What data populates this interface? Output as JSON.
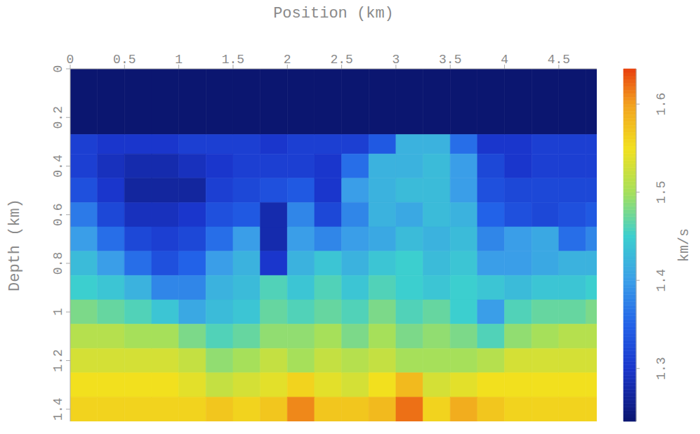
{
  "chart_data": {
    "type": "heatmap",
    "x_label": "Position (km)",
    "y_label": "Depth (km)",
    "xlim": [
      0,
      4.85
    ],
    "xticks": [
      0,
      0.5,
      1,
      1.5,
      2,
      2.5,
      3,
      3.5,
      4,
      4.5
    ],
    "ylim": [
      0,
      1.45
    ],
    "yticks": [
      0,
      0.2,
      0.4,
      0.6,
      0.8,
      1,
      1.2,
      1.4
    ],
    "x_bins": [
      0,
      0.25,
      0.5,
      0.75,
      1,
      1.25,
      1.5,
      1.75,
      2,
      2.25,
      2.5,
      2.75,
      3,
      3.25,
      3.5,
      3.75,
      4,
      4.25,
      4.5,
      4.75,
      4.85
    ],
    "y_bins": [
      0,
      0.27,
      0.35,
      0.45,
      0.55,
      0.65,
      0.75,
      0.85,
      0.95,
      1.05,
      1.15,
      1.25,
      1.35,
      1.45
    ],
    "cells": [
      [
        1.24,
        1.24,
        1.24,
        1.24,
        1.24,
        1.24,
        1.24,
        1.24,
        1.24,
        1.24,
        1.24,
        1.24,
        1.24,
        1.24,
        1.24,
        1.24,
        1.24,
        1.24,
        1.24,
        1.24
      ],
      [
        1.31,
        1.3,
        1.3,
        1.3,
        1.31,
        1.31,
        1.31,
        1.3,
        1.31,
        1.31,
        1.31,
        1.34,
        1.42,
        1.42,
        1.36,
        1.3,
        1.3,
        1.31,
        1.31,
        1.31
      ],
      [
        1.31,
        1.29,
        1.28,
        1.28,
        1.29,
        1.3,
        1.31,
        1.31,
        1.31,
        1.3,
        1.36,
        1.42,
        1.42,
        1.43,
        1.4,
        1.32,
        1.3,
        1.31,
        1.31,
        1.31
      ],
      [
        1.33,
        1.3,
        1.27,
        1.27,
        1.27,
        1.31,
        1.32,
        1.33,
        1.34,
        1.3,
        1.4,
        1.42,
        1.43,
        1.43,
        1.4,
        1.33,
        1.32,
        1.32,
        1.32,
        1.32
      ],
      [
        1.37,
        1.32,
        1.29,
        1.29,
        1.3,
        1.33,
        1.34,
        1.28,
        1.38,
        1.32,
        1.38,
        1.42,
        1.41,
        1.43,
        1.42,
        1.35,
        1.33,
        1.32,
        1.33,
        1.34
      ],
      [
        1.4,
        1.36,
        1.32,
        1.31,
        1.32,
        1.36,
        1.4,
        1.28,
        1.4,
        1.38,
        1.4,
        1.41,
        1.43,
        1.42,
        1.43,
        1.38,
        1.4,
        1.41,
        1.36,
        1.38
      ],
      [
        1.43,
        1.4,
        1.36,
        1.33,
        1.35,
        1.4,
        1.42,
        1.3,
        1.42,
        1.44,
        1.42,
        1.44,
        1.45,
        1.43,
        1.44,
        1.4,
        1.4,
        1.41,
        1.42,
        1.42
      ],
      [
        1.45,
        1.44,
        1.42,
        1.38,
        1.38,
        1.42,
        1.43,
        1.46,
        1.44,
        1.46,
        1.44,
        1.46,
        1.45,
        1.44,
        1.45,
        1.44,
        1.43,
        1.44,
        1.44,
        1.45
      ],
      [
        1.48,
        1.47,
        1.46,
        1.44,
        1.41,
        1.43,
        1.44,
        1.47,
        1.46,
        1.47,
        1.46,
        1.48,
        1.46,
        1.47,
        1.45,
        1.4,
        1.46,
        1.47,
        1.47,
        1.48
      ],
      [
        1.51,
        1.51,
        1.5,
        1.5,
        1.48,
        1.46,
        1.47,
        1.49,
        1.49,
        1.5,
        1.48,
        1.5,
        1.48,
        1.49,
        1.48,
        1.46,
        1.49,
        1.5,
        1.51,
        1.51
      ],
      [
        1.53,
        1.53,
        1.53,
        1.53,
        1.52,
        1.49,
        1.5,
        1.52,
        1.5,
        1.52,
        1.51,
        1.52,
        1.5,
        1.5,
        1.5,
        1.51,
        1.53,
        1.53,
        1.53,
        1.53
      ],
      [
        1.55,
        1.55,
        1.55,
        1.55,
        1.54,
        1.52,
        1.53,
        1.54,
        1.56,
        1.54,
        1.53,
        1.55,
        1.58,
        1.53,
        1.54,
        1.55,
        1.55,
        1.55,
        1.55,
        1.55
      ],
      [
        1.56,
        1.56,
        1.56,
        1.56,
        1.56,
        1.57,
        1.56,
        1.57,
        1.61,
        1.57,
        1.57,
        1.58,
        1.62,
        1.56,
        1.59,
        1.57,
        1.56,
        1.56,
        1.56,
        1.56
      ]
    ],
    "colorbar": {
      "label": "km/s",
      "range": [
        1.24,
        1.64
      ],
      "ticks": [
        1.3,
        1.4,
        1.5,
        1.6
      ]
    }
  }
}
